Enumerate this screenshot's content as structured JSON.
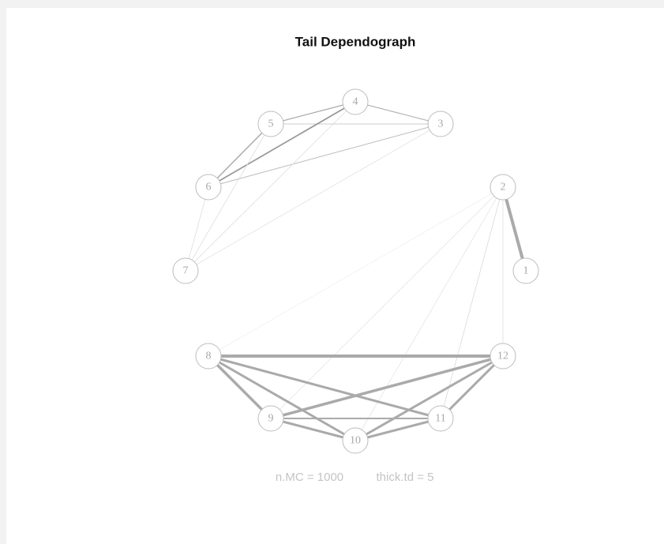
{
  "title": "Tail Dependograph",
  "nodes": [
    {
      "label": "1"
    },
    {
      "label": "2"
    },
    {
      "label": "3"
    },
    {
      "label": "4"
    },
    {
      "label": "5"
    },
    {
      "label": "6"
    },
    {
      "label": "7"
    },
    {
      "label": "8"
    },
    {
      "label": "9"
    },
    {
      "label": "10"
    },
    {
      "label": "11"
    },
    {
      "label": "12"
    }
  ],
  "footer": {
    "n_mc": "n.MC = 1000",
    "thick_td": "thick.td =  5"
  }
}
